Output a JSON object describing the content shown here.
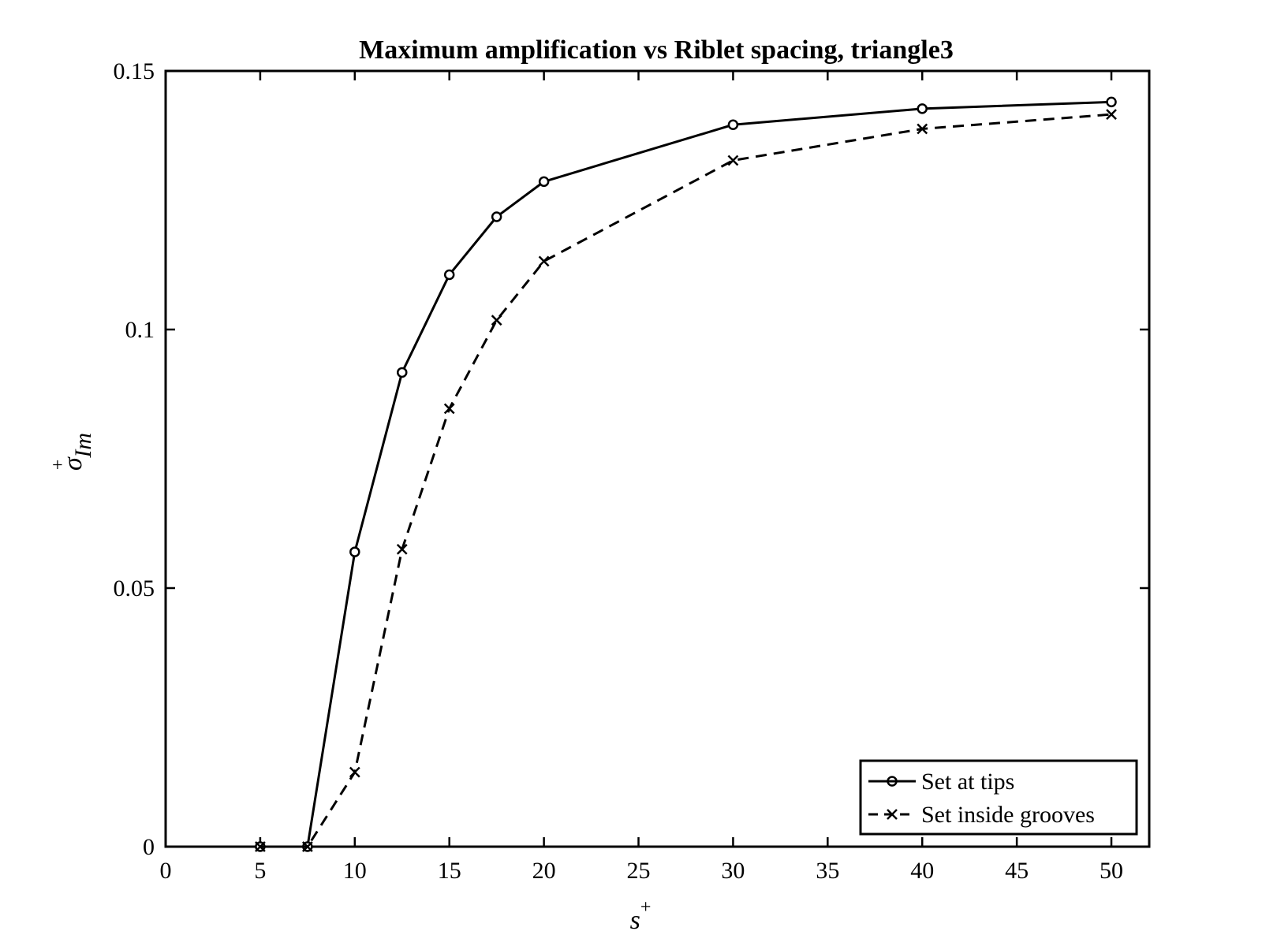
{
  "chart_data": {
    "type": "line",
    "title": "Maximum amplification vs Riblet spacing, triangle3",
    "xlabel": "s",
    "xlabel_sup": "+",
    "ylabel": "σ",
    "ylabel_sup": "+",
    "ylabel_sub": "Im",
    "xlim": [
      0,
      52
    ],
    "ylim": [
      0,
      0.15
    ],
    "xticks": [
      0,
      5,
      10,
      15,
      20,
      25,
      30,
      35,
      40,
      45,
      50
    ],
    "xtick_labels": [
      "0",
      "5",
      "10",
      "15",
      "20",
      "25",
      "30",
      "35",
      "40",
      "45",
      "50"
    ],
    "yticks": [
      0,
      0.05,
      0.1,
      0.15
    ],
    "ytick_labels": [
      "0",
      "0.05",
      "0.1",
      "0.15"
    ],
    "grid": false,
    "legend_position": "bottom-right",
    "series": [
      {
        "name": "Set at tips",
        "style": "solid",
        "marker": "circle",
        "color": "#000000",
        "x": [
          5,
          7.5,
          10,
          12.5,
          15,
          17.5,
          20,
          30,
          40,
          50
        ],
        "y": [
          0,
          0,
          0.057,
          0.0917,
          0.1106,
          0.1218,
          0.1286,
          0.1396,
          0.1427,
          0.144
        ]
      },
      {
        "name": "Set inside grooves",
        "style": "dashed",
        "marker": "x",
        "color": "#000000",
        "x": [
          5,
          7.5,
          10,
          12.5,
          15,
          17.5,
          20,
          30,
          40,
          50
        ],
        "y": [
          0,
          0,
          0.0144,
          0.0575,
          0.0847,
          0.1018,
          0.1132,
          0.1327,
          0.1388,
          0.1416
        ]
      }
    ]
  }
}
